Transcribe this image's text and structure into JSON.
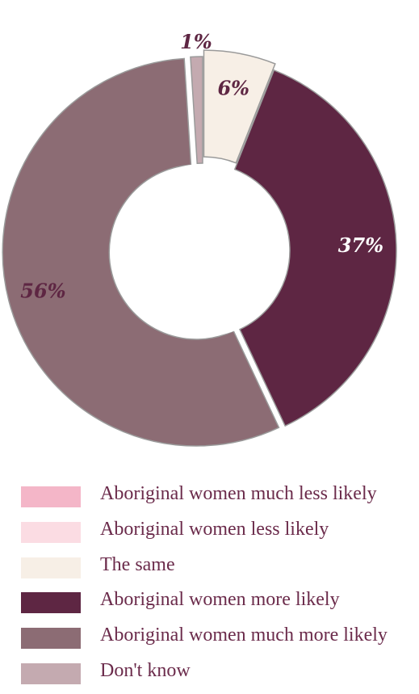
{
  "chart_data": {
    "type": "donut",
    "slices": [
      {
        "label": "Aboriginal women much less likely",
        "value": 0,
        "color": "#f4b6c8",
        "display": ""
      },
      {
        "label": "Aboriginal women less likely",
        "value": 0,
        "color": "#fbdce3",
        "display": ""
      },
      {
        "label": "The same",
        "value": 6,
        "color": "#f7efe6",
        "display": "6%"
      },
      {
        "label": "Aboriginal women more likely",
        "value": 37,
        "color": "#5e2643",
        "display": "37%"
      },
      {
        "label": "Aboriginal women much more likely",
        "value": 56,
        "color": "#8c6c74",
        "display": "56%"
      },
      {
        "label": "Don't know",
        "value": 1,
        "color": "#c4aab0",
        "display": "1%"
      }
    ],
    "legend_position": "bottom"
  }
}
